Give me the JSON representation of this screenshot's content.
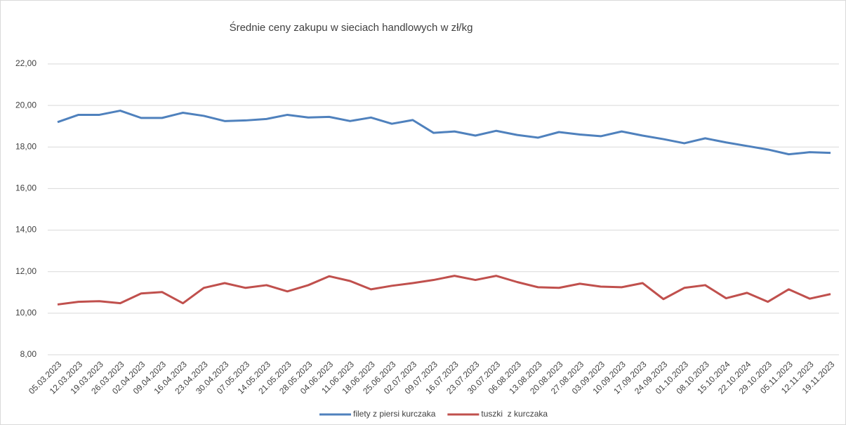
{
  "chart_data": {
    "type": "line",
    "title": "Średnie ceny zakupu w sieciach handlowych w zł/kg",
    "categories": [
      "05.03.2023",
      "12.03.2023",
      "19.03.2023",
      "26.03.2023",
      "02.04.2023",
      "09.04.2023",
      "16.04.2023",
      "23.04.2023",
      "30.04.2023",
      "07.05.2023",
      "14.05.2023",
      "21.05.2023",
      "28.05.2023",
      "04.06.2023",
      "11.06.2023",
      "18.06.2023",
      "25.06.2023",
      "02.07.2023",
      "09.07.2023",
      "16.07.2023",
      "23.07.2023",
      "30.07.2023",
      "06.08.2023",
      "13.08.2023",
      "20.08.2023",
      "27.08.2023",
      "03.09.2023",
      "10.09.2023",
      "17.09.2023",
      "24.09.2023",
      "01.10.2023",
      "08.10.2023",
      "15.10.2024",
      "22.10.2024",
      "29.10.2023",
      "05.11.2023",
      "12.11.2023",
      "19.11.2023"
    ],
    "series": [
      {
        "name": "filety z piersi kurczaka",
        "color": "#4f81bd",
        "values": [
          19.2,
          19.55,
          19.55,
          19.75,
          19.4,
          19.4,
          19.65,
          19.5,
          19.25,
          19.28,
          19.35,
          19.55,
          19.42,
          19.45,
          19.25,
          19.42,
          19.12,
          19.3,
          18.68,
          18.75,
          18.55,
          18.78,
          18.58,
          18.45,
          18.72,
          18.6,
          18.52,
          18.75,
          18.55,
          18.38,
          18.18,
          18.42,
          18.22,
          18.05,
          17.88,
          17.65,
          17.75,
          17.72
        ]
      },
      {
        "name": "tuszki  z kurczaka",
        "color": "#c0504d",
        "values": [
          10.42,
          10.55,
          10.58,
          10.48,
          10.95,
          11.02,
          10.48,
          11.22,
          11.45,
          11.22,
          11.35,
          11.05,
          11.35,
          11.78,
          11.55,
          11.15,
          11.32,
          11.45,
          11.6,
          11.8,
          11.6,
          11.8,
          11.5,
          11.25,
          11.22,
          11.42,
          11.28,
          11.25,
          11.45,
          10.68,
          11.22,
          11.35,
          10.72,
          10.98,
          10.55,
          11.15,
          10.7,
          10.92
        ]
      }
    ],
    "ylim": [
      8,
      22
    ],
    "yticks": [
      {
        "value": 8,
        "label": "8,00"
      },
      {
        "value": 10,
        "label": "10,00"
      },
      {
        "value": 12,
        "label": "12,00"
      },
      {
        "value": 14,
        "label": "14,00"
      },
      {
        "value": 16,
        "label": "16,00"
      },
      {
        "value": 18,
        "label": "18,00"
      },
      {
        "value": 20,
        "label": "20,00"
      },
      {
        "value": 22,
        "label": "22,00"
      }
    ],
    "grid": true,
    "legend": "bottom"
  }
}
